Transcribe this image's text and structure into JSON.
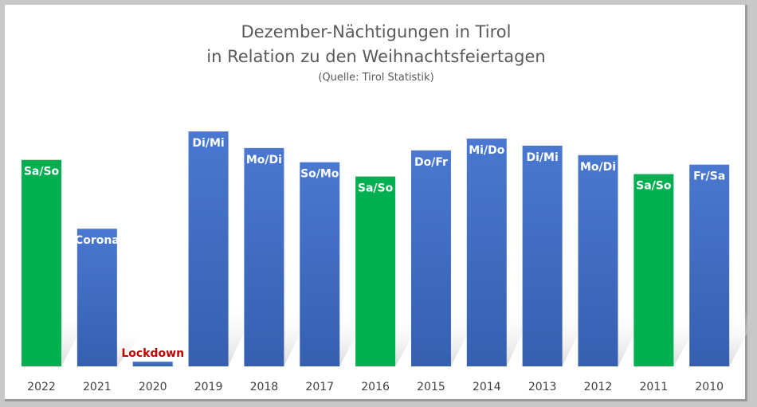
{
  "chart_data": {
    "type": "bar",
    "title_lines": [
      "Dezember-Nächtigungen in Tirol",
      "in Relation zu den Weihnachtsfeiertagen"
    ],
    "subtitle": "(Quelle: Tirol Statistik)",
    "xlabel": "",
    "ylabel": "",
    "y_axis_shown": false,
    "grid": false,
    "ylim": [
      0,
      100
    ],
    "categories": [
      "2022",
      "2021",
      "2020",
      "2019",
      "2018",
      "2017",
      "2016",
      "2015",
      "2014",
      "2013",
      "2012",
      "2011",
      "2010"
    ],
    "values": [
      87,
      58,
      2,
      99,
      92,
      86,
      80,
      91,
      96,
      93,
      89,
      81,
      85
    ],
    "bar_labels": [
      "Sa/So",
      "Corona",
      "Lockdown",
      "Di/Mi",
      "Mo/Di",
      "So/Mo",
      "Sa/So",
      "Do/Fr",
      "Mi/Do",
      "Di/Mi",
      "Mo/Di",
      "Sa/So",
      "Fr/Sa"
    ],
    "bar_colors": [
      "#00b050",
      "#4472c4",
      "#4472c4",
      "#4472c4",
      "#4472c4",
      "#4472c4",
      "#00b050",
      "#4472c4",
      "#4472c4",
      "#4472c4",
      "#4472c4",
      "#00b050",
      "#4472c4"
    ],
    "label_colors": [
      "#ffffff",
      "#ffffff",
      "#c00000",
      "#ffffff",
      "#ffffff",
      "#ffffff",
      "#ffffff",
      "#ffffff",
      "#ffffff",
      "#ffffff",
      "#ffffff",
      "#ffffff",
      "#ffffff"
    ]
  }
}
